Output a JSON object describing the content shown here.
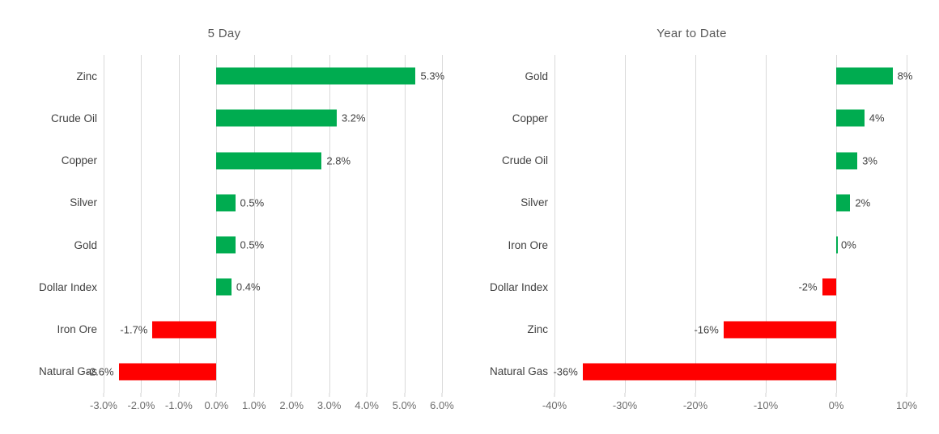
{
  "colors": {
    "positive": "#00ac50",
    "negative": "#ff0000",
    "gridline": "#d9d9d9"
  },
  "chart_data": [
    {
      "type": "bar",
      "orientation": "horizontal",
      "title": "5 Day",
      "categories": [
        "Zinc",
        "Crude Oil",
        "Copper",
        "Silver",
        "Gold",
        "Dollar Index",
        "Iron Ore",
        "Natural Gas"
      ],
      "values": [
        5.3,
        3.2,
        2.8,
        0.5,
        0.5,
        0.4,
        -1.7,
        -2.6
      ],
      "data_labels": [
        "5.3%",
        "3.2%",
        "2.8%",
        "0.5%",
        "0.5%",
        "0.4%",
        "-1.7%",
        "-2.6%"
      ],
      "xlabel": "",
      "ylabel": "",
      "xlim": [
        -3,
        6
      ],
      "tick_step": 1,
      "tick_labels": [
        "-3.0%",
        "-2.0%",
        "-1.0%",
        "0.0%",
        "1.0%",
        "2.0%",
        "3.0%",
        "4.0%",
        "5.0%",
        "6.0%"
      ],
      "grid": true,
      "legend": "none"
    },
    {
      "type": "bar",
      "orientation": "horizontal",
      "title": "Year to Date",
      "categories": [
        "Gold",
        "Copper",
        "Crude Oil",
        "Silver",
        "Iron Ore",
        "Dollar Index",
        "Zinc",
        "Natural Gas"
      ],
      "values": [
        8,
        4,
        3,
        2,
        0,
        -2,
        -16,
        -36
      ],
      "data_labels": [
        "8%",
        "4%",
        "3%",
        "2%",
        "0%",
        "-2%",
        "-16%",
        "-36%"
      ],
      "xlabel": "",
      "ylabel": "",
      "xlim": [
        -40,
        10
      ],
      "tick_step": 10,
      "tick_labels": [
        "-40%",
        "-30%",
        "-20%",
        "-10%",
        "0%",
        "10%"
      ],
      "grid": true,
      "legend": "none"
    }
  ]
}
